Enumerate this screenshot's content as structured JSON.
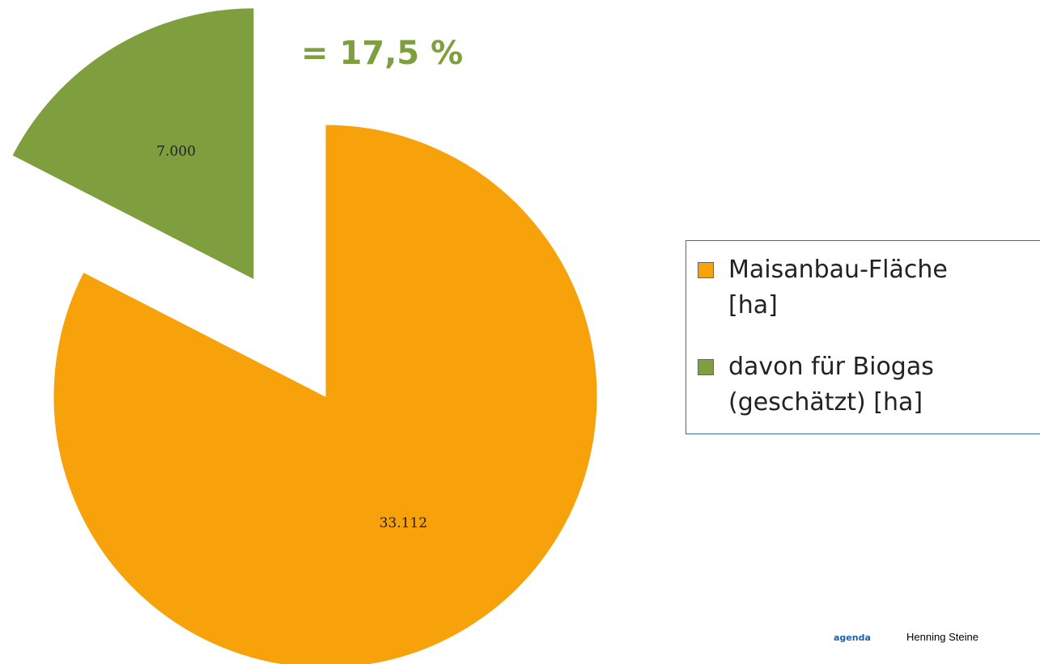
{
  "chart_data": {
    "type": "pie",
    "categories": [
      "Maisanbau-Fläche [ha]",
      "davon für Biogas (geschätzt) [ha]"
    ],
    "values": [
      33112,
      7000
    ],
    "value_labels": [
      "33.112",
      "7.000"
    ],
    "colors": [
      "#f7a20a",
      "#7f9e3e"
    ],
    "exploded": [
      false,
      true
    ],
    "annotation": "= 17,5 %",
    "legend": "right"
  },
  "footer": {
    "logo": "agenda",
    "author": "Henning Steine"
  }
}
